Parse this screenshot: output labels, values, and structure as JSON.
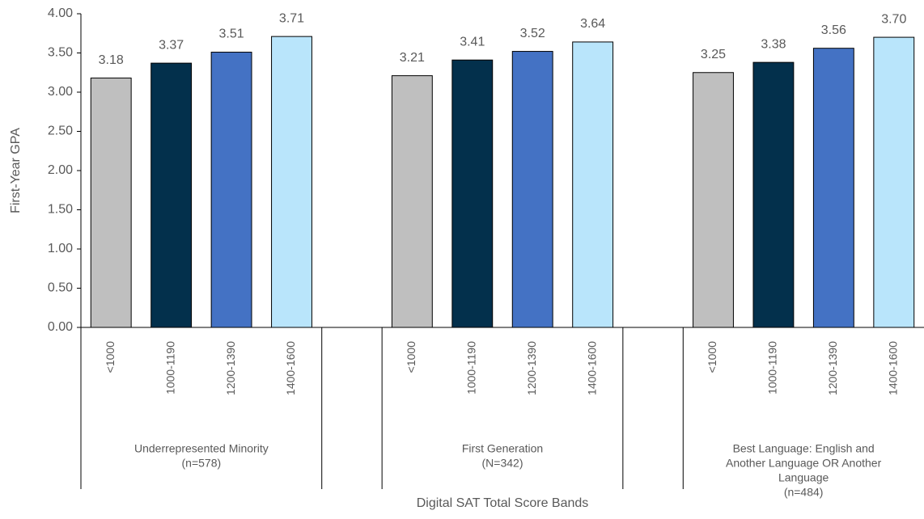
{
  "chart_data": {
    "type": "grouped_bar",
    "y_label": "First-Year GPA",
    "x_label": "Digital SAT Total Score Bands",
    "groups": [
      [
        "Underrepresented Minority",
        "(n=578)"
      ],
      [
        "First Generation",
        "(N=342)"
      ],
      [
        "Best Language: English and",
        "Another Language OR Another",
        "Language",
        "(n=484)"
      ]
    ],
    "series": [
      {
        "name": "<1000",
        "color": "#bfbfbf",
        "values": [
          3.18,
          3.21,
          3.25
        ],
        "value_labels": [
          "3.18",
          "3.21",
          "3.25"
        ]
      },
      {
        "name": "1000-1190",
        "color": "#03304c",
        "values": [
          3.37,
          3.41,
          3.38
        ],
        "value_labels": [
          "3.37",
          "3.41",
          "3.38"
        ]
      },
      {
        "name": "1200-1390",
        "color": "#4472c4",
        "values": [
          3.51,
          3.52,
          3.56
        ],
        "value_labels": [
          "3.51",
          "3.52",
          "3.56"
        ]
      },
      {
        "name": "1400-1600",
        "color": "#b9e5fb",
        "values": [
          3.71,
          3.64,
          3.7
        ],
        "value_labels": [
          "3.71",
          "3.64",
          "3.70"
        ]
      }
    ],
    "ylim": [
      0,
      4
    ],
    "yticks": [
      {
        "value": 0,
        "label": "0.00"
      },
      {
        "value": 0.5,
        "label": "0.50"
      },
      {
        "value": 1,
        "label": "1.00"
      },
      {
        "value": 1.5,
        "label": "1.50"
      },
      {
        "value": 2,
        "label": "2.00"
      },
      {
        "value": 2.5,
        "label": "2.50"
      },
      {
        "value": 3,
        "label": "3.00"
      },
      {
        "value": 3.5,
        "label": "3.50"
      },
      {
        "value": 4,
        "label": "4.00"
      }
    ],
    "grid": false
  }
}
